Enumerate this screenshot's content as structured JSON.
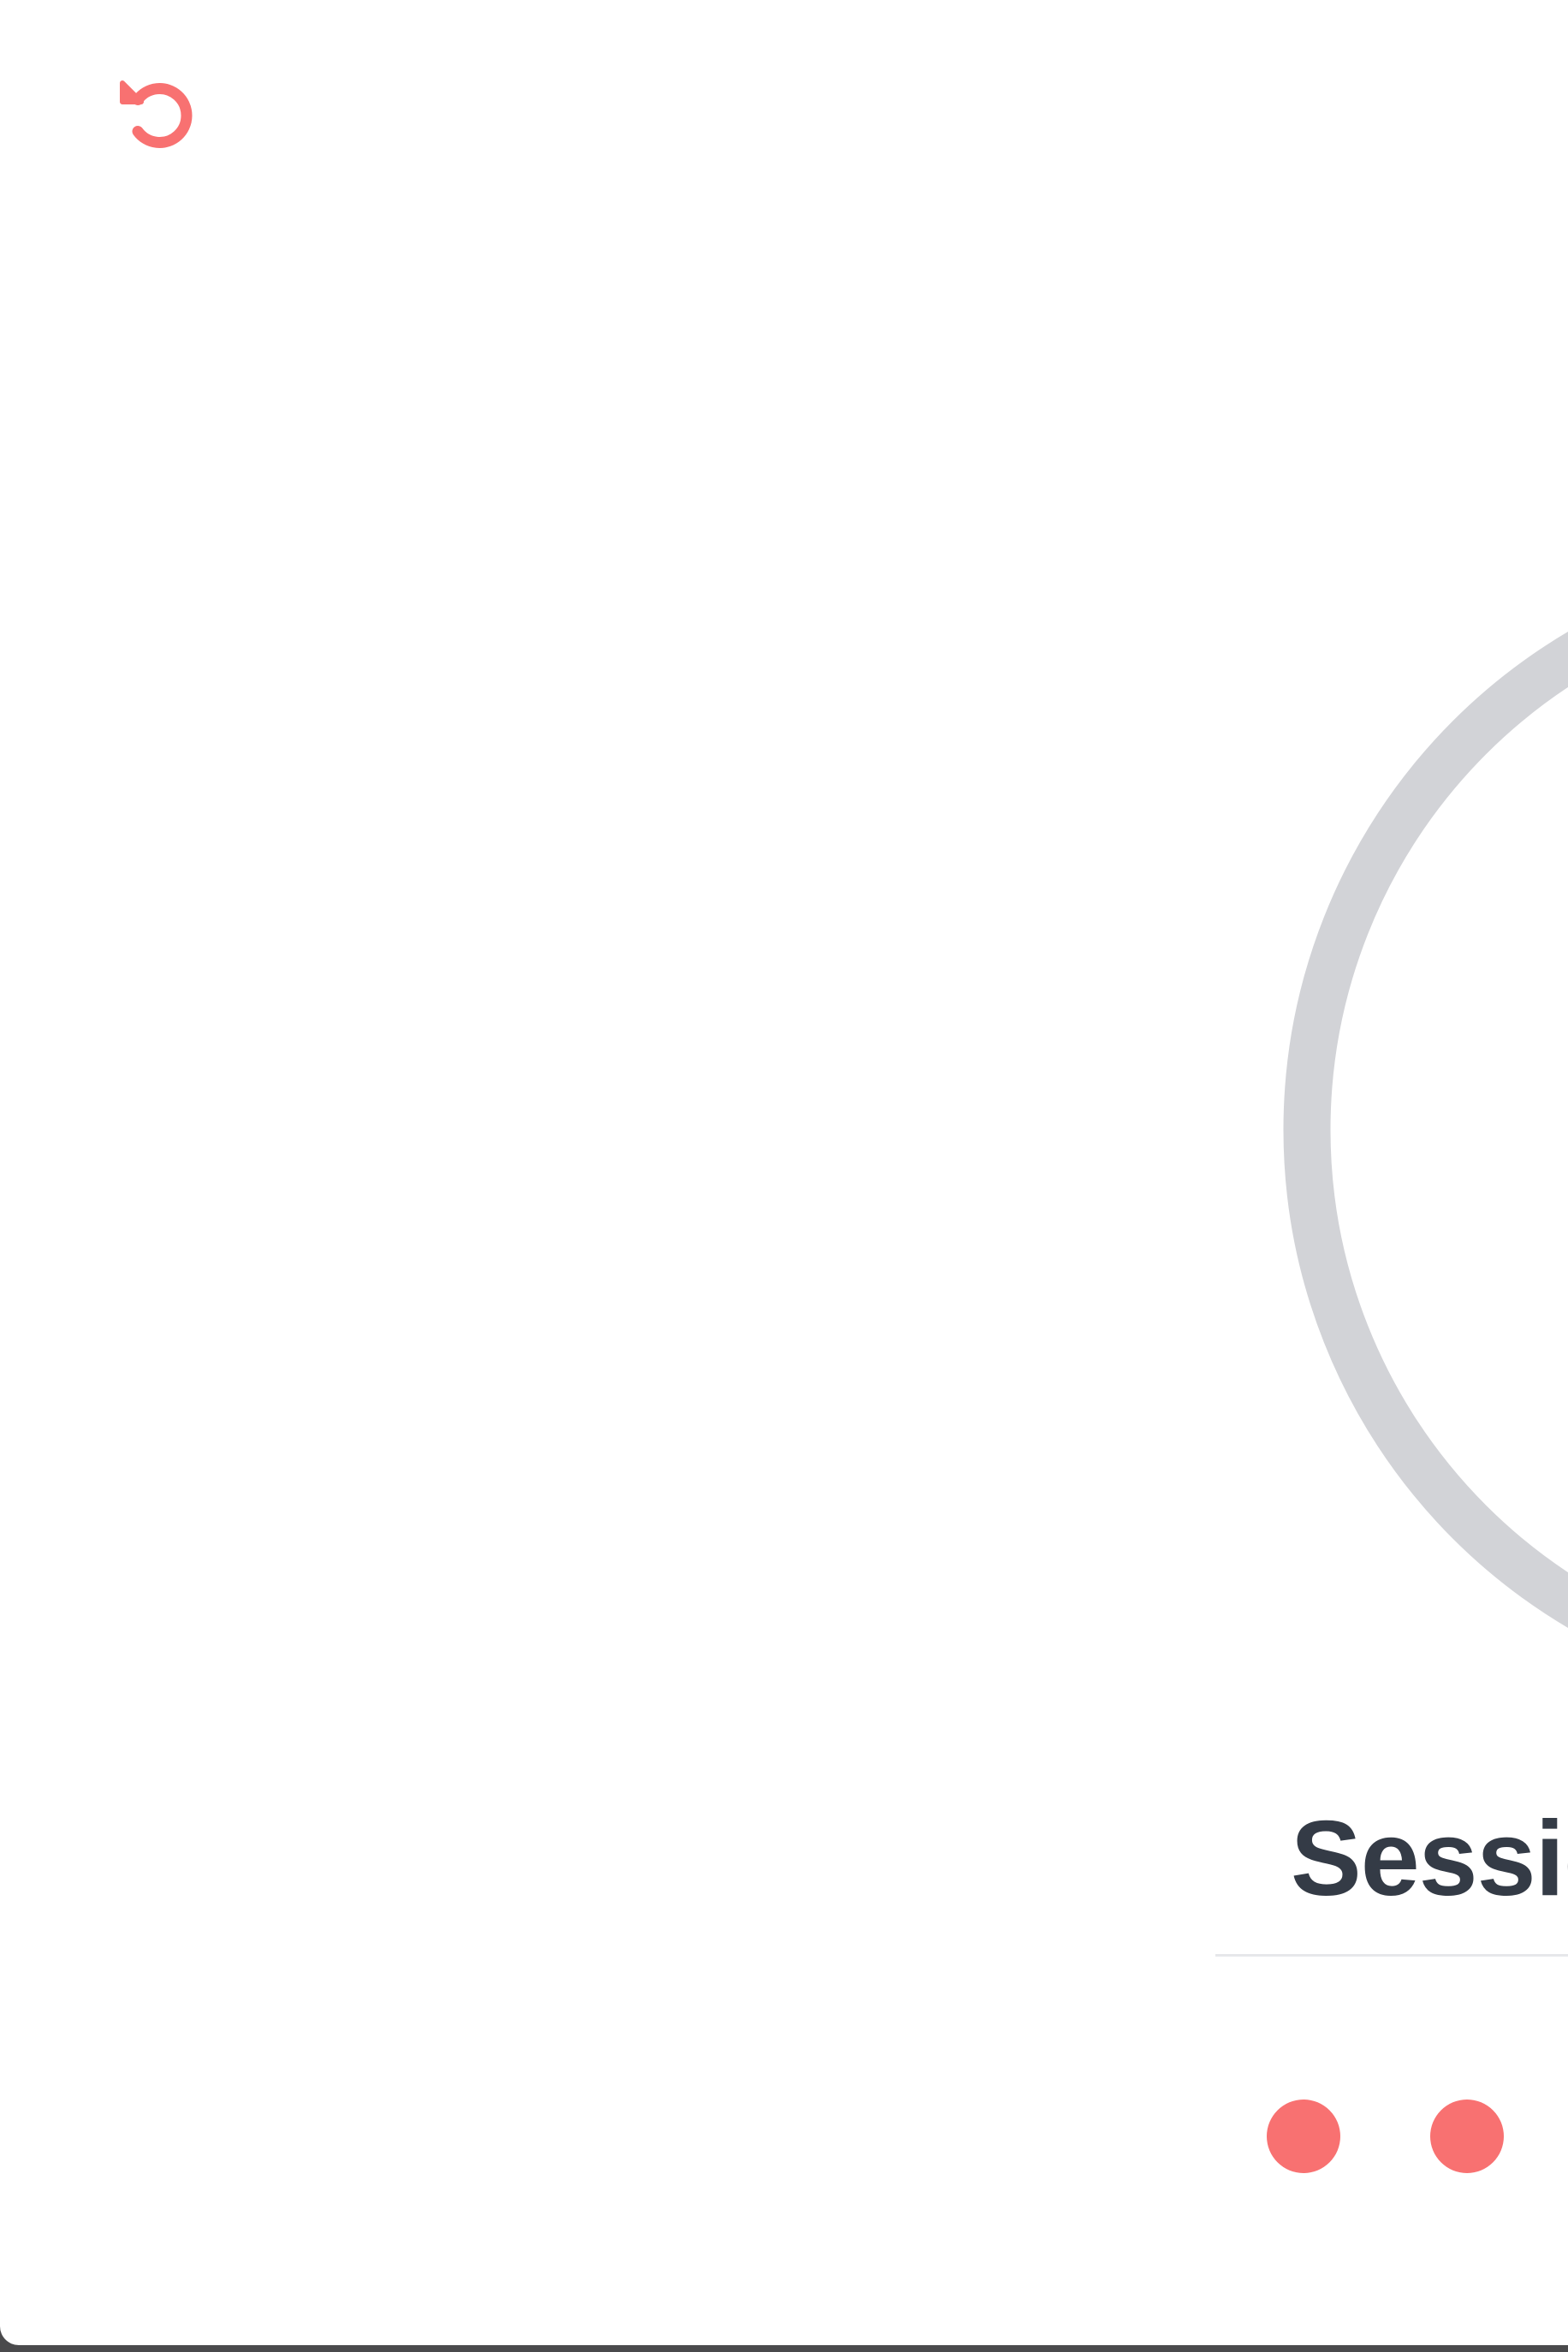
{
  "colors": {
    "accent": "#f87171",
    "ring_track": "#d2d3d7",
    "label_text": "#343b46",
    "divider": "#e6e7ea"
  },
  "toolbar": {
    "reset_icon": "rotate-ccw-icon"
  },
  "session": {
    "label": "Sessio"
  },
  "session_dots": [
    {
      "state": "active"
    },
    {
      "state": "active"
    }
  ]
}
